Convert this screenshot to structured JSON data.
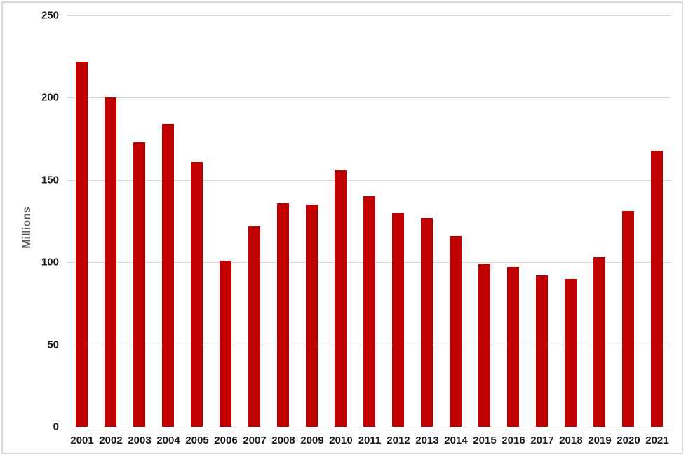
{
  "chart_data": {
    "type": "bar",
    "title": "",
    "xlabel": "",
    "ylabel": "Millions",
    "categories": [
      "2001",
      "2002",
      "2003",
      "2004",
      "2005",
      "2006",
      "2007",
      "2008",
      "2009",
      "2010",
      "2011",
      "2012",
      "2013",
      "2014",
      "2015",
      "2016",
      "2017",
      "2018",
      "2019",
      "2020",
      "2021"
    ],
    "values": [
      222,
      200,
      173,
      184,
      161,
      101,
      122,
      136,
      135,
      156,
      140,
      130,
      127,
      116,
      99,
      97,
      92,
      90,
      103,
      131,
      168
    ],
    "ylim": [
      0,
      250
    ],
    "yticks": [
      0,
      50,
      100,
      150,
      200,
      250
    ],
    "grid": "horizontal",
    "legend": "none"
  },
  "colors": {
    "bar": "#c00000",
    "gridline": "#d9d9d9",
    "border": "#d9d9d9",
    "tick_label": "#1a1a1a",
    "axis_title": "#595959",
    "background": "#ffffff"
  }
}
